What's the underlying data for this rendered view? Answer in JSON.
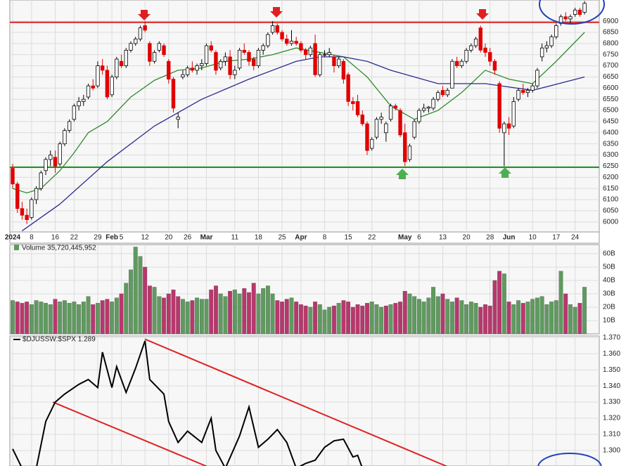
{
  "chart_data": [
    {
      "type": "candlestick",
      "categories": [
        "2024",
        null,
        null,
        null,
        "8",
        null,
        null,
        null,
        null,
        "16",
        null,
        null,
        null,
        "22",
        null,
        null,
        null,
        null,
        "29",
        null,
        null,
        "Feb",
        null,
        "5",
        null,
        null,
        null,
        null,
        "12",
        null,
        null,
        null,
        null,
        "20",
        null,
        null,
        null,
        "26",
        null,
        null,
        null,
        "Mar",
        null,
        null,
        null,
        null,
        null,
        "11",
        null,
        null,
        null,
        null,
        "18",
        null,
        null,
        null,
        null,
        "25",
        null,
        null,
        null,
        "Apr",
        null,
        null,
        null,
        null,
        "8",
        null,
        null,
        null,
        null,
        "15",
        null,
        null,
        null,
        null,
        "22",
        null,
        null,
        null,
        null,
        null,
        null,
        "May",
        null,
        null,
        "6",
        null,
        null,
        null,
        null,
        "13",
        null,
        null,
        null,
        null,
        "20",
        null,
        null,
        null,
        null,
        "28",
        null,
        null,
        null,
        "Jun",
        null,
        null,
        null,
        null,
        "10",
        null,
        null,
        null,
        null,
        "17",
        null,
        null,
        null,
        "24",
        null,
        null
      ],
      "open": [
        6240,
        6170,
        6060,
        6030,
        6020,
        6100,
        6150,
        6230,
        6280,
        6290,
        6260,
        6350,
        6410,
        6460,
        6520,
        6540,
        6560,
        6610,
        6610,
        6700,
        6680,
        6570,
        6650,
        6720,
        6700,
        6770,
        6800,
        6820,
        6880,
        6800,
        6720,
        6770,
        6790,
        6720,
        6640,
        6460,
        6650,
        6660,
        6690,
        6680,
        6700,
        6710,
        6790,
        6760,
        6690,
        6720,
        6740,
        6660,
        6690,
        6770,
        6760,
        6730,
        6700,
        6770,
        6790,
        6850,
        6880,
        6850,
        6820,
        6800,
        6810,
        6800,
        6770,
        6750,
        6800,
        6660,
        6750,
        6750,
        6740,
        6700,
        6720,
        6660,
        6540,
        6540,
        6480,
        6440,
        6330,
        6380,
        6460,
        6400,
        6460,
        6520,
        6500,
        6400,
        6280,
        6380,
        6450,
        6500,
        6510,
        6510,
        6550,
        6590,
        6570,
        6600,
        6720,
        6700,
        6720,
        6770,
        6790,
        6870,
        6780,
        6760,
        6720,
        6620,
        6400,
        6440,
        6430,
        6550,
        6590,
        6580,
        6590,
        6610,
        6740,
        6780,
        6790,
        6830,
        6890,
        6920,
        6910,
        6930,
        6950,
        6940
      ],
      "high": [
        6260,
        6180,
        6090,
        6060,
        6110,
        6160,
        6230,
        6290,
        6320,
        6320,
        6360,
        6420,
        6460,
        6530,
        6560,
        6570,
        6620,
        6640,
        6720,
        6730,
        6700,
        6660,
        6740,
        6750,
        6780,
        6810,
        6830,
        6880,
        6900,
        6810,
        6770,
        6810,
        6800,
        6730,
        6650,
        6490,
        6680,
        6700,
        6720,
        6710,
        6730,
        6800,
        6810,
        6770,
        6730,
        6760,
        6770,
        6700,
        6780,
        6800,
        6770,
        6740,
        6780,
        6800,
        6850,
        6900,
        6890,
        6860,
        6840,
        6860,
        6830,
        6810,
        6780,
        6790,
        6840,
        6760,
        6770,
        6780,
        6750,
        6740,
        6730,
        6670,
        6560,
        6570,
        6500,
        6450,
        6380,
        6470,
        6490,
        6450,
        6530,
        6530,
        6510,
        6440,
        6350,
        6460,
        6510,
        6530,
        6520,
        6560,
        6590,
        6610,
        6600,
        6730,
        6740,
        6730,
        6780,
        6800,
        6830,
        6880,
        6800,
        6780,
        6730,
        6630,
        6450,
        6470,
        6560,
        6600,
        6620,
        6600,
        6620,
        6690,
        6800,
        6810,
        6840,
        6890,
        6930,
        6940,
        6930,
        6960,
        6960,
        6990
      ],
      "low": [
        6150,
        6040,
        6010,
        5990,
        6010,
        6080,
        6140,
        6210,
        6250,
        6220,
        6250,
        6340,
        6400,
        6450,
        6500,
        6520,
        6550,
        6590,
        6600,
        6660,
        6550,
        6560,
        6640,
        6690,
        6690,
        6760,
        6790,
        6810,
        6850,
        6700,
        6710,
        6760,
        6740,
        6620,
        6490,
        6420,
        6640,
        6650,
        6670,
        6660,
        6680,
        6700,
        6760,
        6660,
        6680,
        6700,
        6640,
        6640,
        6680,
        6750,
        6700,
        6680,
        6690,
        6750,
        6780,
        6840,
        6840,
        6810,
        6790,
        6790,
        6790,
        6760,
        6730,
        6740,
        6650,
        6650,
        6740,
        6740,
        6670,
        6690,
        6620,
        6520,
        6500,
        6470,
        6430,
        6300,
        6320,
        6370,
        6440,
        6360,
        6450,
        6500,
        6380,
        6250,
        6270,
        6370,
        6440,
        6490,
        6490,
        6500,
        6540,
        6560,
        6560,
        6600,
        6690,
        6690,
        6710,
        6760,
        6780,
        6760,
        6740,
        6700,
        6660,
        6400,
        6250,
        6390,
        6420,
        6540,
        6570,
        6560,
        6580,
        6600,
        6720,
        6760,
        6780,
        6820,
        6880,
        6900,
        6890,
        6920,
        6920,
        6930
      ],
      "close": [
        6170,
        6060,
        6030,
        6010,
        6100,
        6150,
        6220,
        6280,
        6300,
        6250,
        6350,
        6410,
        6450,
        6520,
        6540,
        6550,
        6610,
        6600,
        6700,
        6680,
        6560,
        6650,
        6730,
        6700,
        6770,
        6800,
        6820,
        6870,
        6860,
        6720,
        6760,
        6800,
        6750,
        6640,
        6510,
        6470,
        6660,
        6690,
        6680,
        6700,
        6710,
        6790,
        6770,
        6680,
        6720,
        6740,
        6660,
        6680,
        6770,
        6760,
        6720,
        6700,
        6770,
        6790,
        6840,
        6880,
        6850,
        6820,
        6800,
        6810,
        6800,
        6770,
        6750,
        6780,
        6660,
        6750,
        6750,
        6760,
        6700,
        6730,
        6640,
        6540,
        6530,
        6480,
        6440,
        6320,
        6370,
        6460,
        6470,
        6440,
        6520,
        6510,
        6390,
        6270,
        6340,
        6450,
        6500,
        6510,
        6515,
        6550,
        6580,
        6570,
        6590,
        6720,
        6700,
        6720,
        6770,
        6790,
        6820,
        6770,
        6760,
        6720,
        6680,
        6420,
        6440,
        6420,
        6540,
        6590,
        6580,
        6590,
        6610,
        6680,
        6780,
        6790,
        6830,
        6880,
        6920,
        6910,
        6920,
        6950,
        6930,
        6980
      ],
      "up_color": "#ffffff",
      "down_color": "#e00000",
      "series": [
        {
          "color": "#2e8b2e",
          "x": [
            0,
            3,
            6,
            10,
            13,
            16,
            20,
            25,
            30,
            35,
            40,
            45,
            50,
            55,
            60,
            65,
            70,
            75,
            80,
            85,
            90,
            95,
            100,
            105,
            110,
            115,
            121
          ],
          "values": [
            6150,
            6130,
            6150,
            6230,
            6310,
            6400,
            6450,
            6560,
            6635,
            6680,
            6690,
            6720,
            6730,
            6750,
            6780,
            6760,
            6740,
            6650,
            6520,
            6460,
            6500,
            6580,
            6680,
            6640,
            6620,
            6720,
            6850
          ]
        },
        {
          "color": "#2b2b8f",
          "x": [
            2,
            10,
            20,
            30,
            40,
            50,
            60,
            65,
            70,
            75,
            80,
            90,
            100,
            110,
            121
          ],
          "values": [
            5960,
            6080,
            6270,
            6430,
            6550,
            6640,
            6720,
            6740,
            6740,
            6720,
            6680,
            6620,
            6620,
            6590,
            6650
          ]
        }
      ],
      "hlines": [
        {
          "value": 6895,
          "color": "#e02020"
        },
        {
          "value": 6245,
          "color": "#1a9a1a"
        }
      ],
      "ylim": [
        5955,
        6995
      ],
      "yticks": [
        6000,
        6050,
        6100,
        6150,
        6200,
        6250,
        6300,
        6350,
        6400,
        6450,
        6500,
        6550,
        6600,
        6650,
        6700,
        6750,
        6800,
        6850,
        6900
      ],
      "grid": true
    },
    {
      "type": "bar",
      "title": "Volume 35,720,445,952",
      "values": [
        25,
        24,
        23,
        24,
        22,
        25,
        24,
        23,
        22,
        26,
        24,
        25,
        23,
        24,
        22,
        24,
        28,
        22,
        23,
        25,
        26,
        24,
        27,
        30,
        38,
        48,
        65,
        58,
        50,
        36,
        35,
        28,
        27,
        30,
        33,
        28,
        26,
        24,
        25,
        27,
        26,
        26,
        33,
        36,
        30,
        28,
        32,
        33,
        30,
        34,
        31,
        38,
        30,
        34,
        36,
        30,
        25,
        24,
        26,
        27,
        24,
        22,
        21,
        20,
        24,
        22,
        18,
        20,
        21,
        23,
        25,
        24,
        20,
        22,
        21,
        23,
        24,
        22,
        20,
        21,
        22,
        23,
        24,
        32,
        30,
        28,
        26,
        24,
        27,
        35,
        28,
        30,
        26,
        24,
        27,
        25,
        22,
        24,
        23,
        20,
        22,
        21,
        40,
        47,
        45,
        24,
        22,
        25,
        23,
        24,
        26,
        27,
        28,
        22,
        24,
        25,
        47,
        30,
        22,
        20,
        23,
        35
      ],
      "up_color": "#5f9a5f",
      "down_color": "#b8376c",
      "ylim": [
        0,
        66.8
      ],
      "yticks": [
        {
          "value": 10,
          "label": "10B"
        },
        {
          "value": 20,
          "label": "20B"
        },
        {
          "value": 30,
          "label": "30B"
        },
        {
          "value": 40,
          "label": "40B"
        },
        {
          "value": 50,
          "label": "50B"
        },
        {
          "value": 60,
          "label": "60B"
        }
      ],
      "grid": true
    },
    {
      "type": "line",
      "title": "$DJUSSW:$SPX 1.289",
      "color": "#000000",
      "x": [
        0,
        2,
        5,
        7,
        9,
        11,
        14,
        16,
        18,
        19,
        21,
        22,
        24,
        26,
        28,
        29,
        32,
        33,
        35,
        37,
        40,
        42,
        43,
        45,
        48,
        50,
        52,
        54,
        56,
        58,
        60,
        62,
        64,
        66,
        68,
        70,
        72,
        73,
        74
      ],
      "values": [
        1.301,
        1.289,
        1.289,
        1.318,
        1.33,
        1.335,
        1.341,
        1.344,
        1.339,
        1.361,
        1.339,
        1.352,
        1.336,
        1.351,
        1.368,
        1.344,
        1.335,
        1.318,
        1.305,
        1.312,
        1.305,
        1.32,
        1.3,
        1.289,
        1.309,
        1.327,
        1.302,
        1.307,
        1.313,
        1.305,
        1.289,
        1.292,
        1.294,
        1.302,
        1.306,
        1.307,
        1.296,
        1.297,
        1.289
      ],
      "trendlines": [
        {
          "color": "#e02020",
          "x": [
            28,
            92
          ],
          "values": [
            1.369,
            1.29
          ]
        },
        {
          "color": "#e02020",
          "x": [
            8.5,
            41.2
          ],
          "values": [
            1.33,
            1.29
          ]
        }
      ],
      "ylim": [
        1.2904,
        1.371
      ],
      "yticks": [
        {
          "value": 1.3,
          "label": "1.300"
        },
        {
          "value": 1.31,
          "label": "1.310"
        },
        {
          "value": 1.32,
          "label": "1.320"
        },
        {
          "value": 1.33,
          "label": "1.330"
        },
        {
          "value": 1.34,
          "label": "1.340"
        },
        {
          "value": 1.35,
          "label": "1.350"
        },
        {
          "value": 1.36,
          "label": "1.360"
        },
        {
          "value": 1.37,
          "label": "1.370"
        }
      ],
      "grid": true
    }
  ]
}
